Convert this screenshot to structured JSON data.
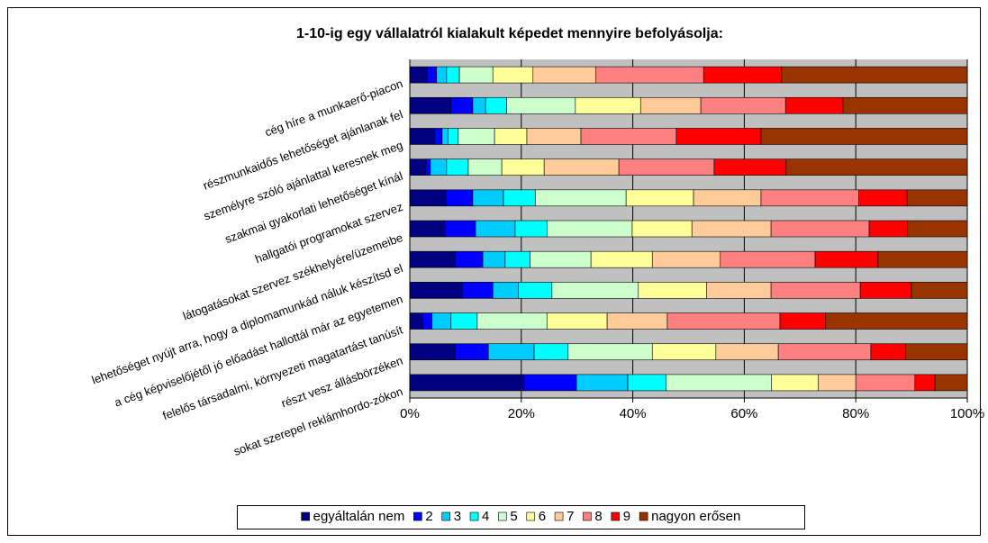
{
  "chart_data": {
    "type": "bar_stacked_100",
    "orientation": "horizontal",
    "title": "1-10-ig egy vállalatról kialakult képedet mennyire befolyásolja:",
    "categories": [
      "cég híre a munkaerő-piacon",
      "részmunkaidős lehetőséget ajánlanak fel",
      "személyre szóló ajánlattal keresnek meg",
      "szakmai gyakorlati lehetőséget kínál",
      "hallgatói programokat szervez",
      "látogatásokat szervez székhelyére/üzemeibe",
      "lehetőséget nyújt arra, hogy a diplomamunkád náluk készítsd el",
      "a cég képviselőjétől jó előadást hallottál már az egyetemen",
      "felelős társadalmi, környezeti magatartást tanúsít",
      "részt vesz állásbörzéken",
      "sokat szerepel reklámhordo-zókon"
    ],
    "series": [
      {
        "name": "egyáltalán nem",
        "color": "#000080",
        "values": [
          3.1,
          7.4,
          4.4,
          2.9,
          6.5,
          6.3,
          8.1,
          9.4,
          2.3,
          8.1,
          20.5
        ]
      },
      {
        "name": "2",
        "color": "#0000ff",
        "values": [
          1.7,
          3.9,
          1.4,
          0.8,
          4.8,
          5.5,
          5.0,
          5.5,
          1.7,
          6.0,
          9.4
        ]
      },
      {
        "name": "3",
        "color": "#00ccff",
        "values": [
          1.8,
          2.3,
          1.1,
          2.9,
          5.5,
          7.1,
          4.0,
          4.6,
          3.4,
          8.2,
          9.2
        ]
      },
      {
        "name": "4",
        "color": "#00ffff",
        "values": [
          2.3,
          3.8,
          1.8,
          3.9,
          5.7,
          5.7,
          4.5,
          6.0,
          4.7,
          6.1,
          6.9
        ]
      },
      {
        "name": "5",
        "color": "#ccffcc",
        "values": [
          6.0,
          12.3,
          6.5,
          6.0,
          16.3,
          15.3,
          10.9,
          15.5,
          12.5,
          15.1,
          18.9
        ]
      },
      {
        "name": "6",
        "color": "#ffff99",
        "values": [
          7.2,
          11.7,
          5.8,
          7.6,
          12.1,
          10.7,
          11.0,
          12.2,
          10.8,
          11.4,
          8.4
        ]
      },
      {
        "name": "7",
        "color": "#ffcc99",
        "values": [
          11.3,
          10.8,
          9.7,
          13.4,
          12.1,
          14.2,
          12.2,
          11.6,
          10.8,
          11.2,
          6.7
        ]
      },
      {
        "name": "8",
        "color": "#ff8080",
        "values": [
          19.3,
          15.2,
          17.1,
          17.1,
          17.5,
          17.6,
          17.0,
          16.0,
          20.2,
          16.6,
          10.6
        ]
      },
      {
        "name": "9",
        "color": "#ff0000",
        "values": [
          14.0,
          10.3,
          15.2,
          12.9,
          8.7,
          6.9,
          11.3,
          9.2,
          8.2,
          6.2,
          3.6
        ]
      },
      {
        "name": "nagyon erősen",
        "color": "#993300",
        "values": [
          33.3,
          22.3,
          37.0,
          32.5,
          10.8,
          10.7,
          16.0,
          10.0,
          25.4,
          11.1,
          5.8
        ]
      }
    ],
    "xlim": [
      0,
      100
    ],
    "xticks": [
      {
        "value": 0,
        "label": "0%"
      },
      {
        "value": 20,
        "label": "20%"
      },
      {
        "value": 40,
        "label": "40%"
      },
      {
        "value": 60,
        "label": "60%"
      },
      {
        "value": 80,
        "label": "80%"
      },
      {
        "value": 100,
        "label": "100%"
      }
    ],
    "grid": true,
    "legend": "bottom"
  }
}
